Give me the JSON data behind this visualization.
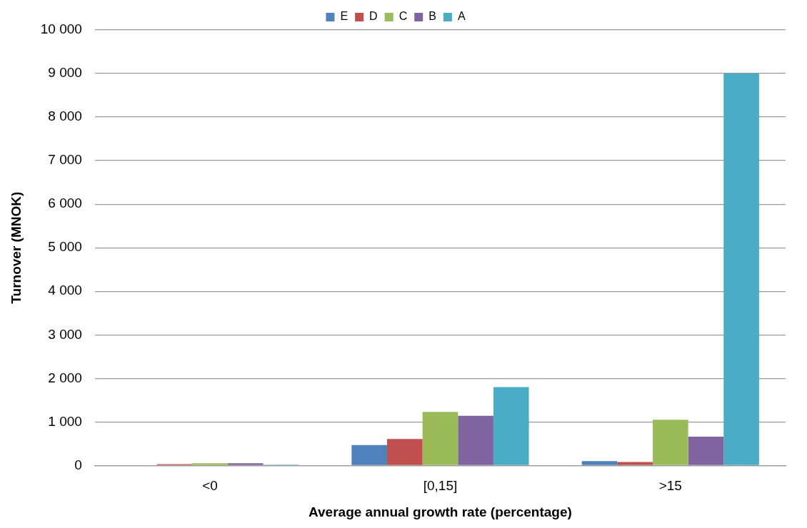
{
  "chart_data": {
    "type": "bar",
    "xlabel": "Average annual growth rate (percentage)",
    "ylabel": "Turnover (MNOK)",
    "categories": [
      "<0",
      "[0,15]",
      ">15"
    ],
    "series": [
      {
        "name": "E",
        "color": "#4f81bd",
        "values": [
          10,
          470,
          100
        ]
      },
      {
        "name": "D",
        "color": "#c0504d",
        "values": [
          30,
          610,
          80
        ]
      },
      {
        "name": "C",
        "color": "#9bbb59",
        "values": [
          50,
          1230,
          1050
        ]
      },
      {
        "name": "B",
        "color": "#8064a2",
        "values": [
          50,
          1140,
          660
        ]
      },
      {
        "name": "A",
        "color": "#4bacc6",
        "values": [
          20,
          1800,
          9000
        ]
      }
    ],
    "ylim": [
      0,
      10000
    ],
    "yticks": [
      0,
      {
        "value": 1000,
        "label": "1 000"
      },
      {
        "value": 2000,
        "label": "2 000"
      },
      {
        "value": 3000,
        "label": "3 000"
      },
      {
        "value": 4000,
        "label": "4 000"
      },
      {
        "value": 5000,
        "label": "5 000"
      },
      {
        "value": 6000,
        "label": "6 000"
      },
      {
        "value": 7000,
        "label": "7 000"
      },
      {
        "value": 8000,
        "label": "8 000"
      },
      {
        "value": 9000,
        "label": "9 000"
      },
      {
        "value": 10000,
        "label": "10 000"
      }
    ],
    "grid": "y",
    "legend": "top"
  }
}
